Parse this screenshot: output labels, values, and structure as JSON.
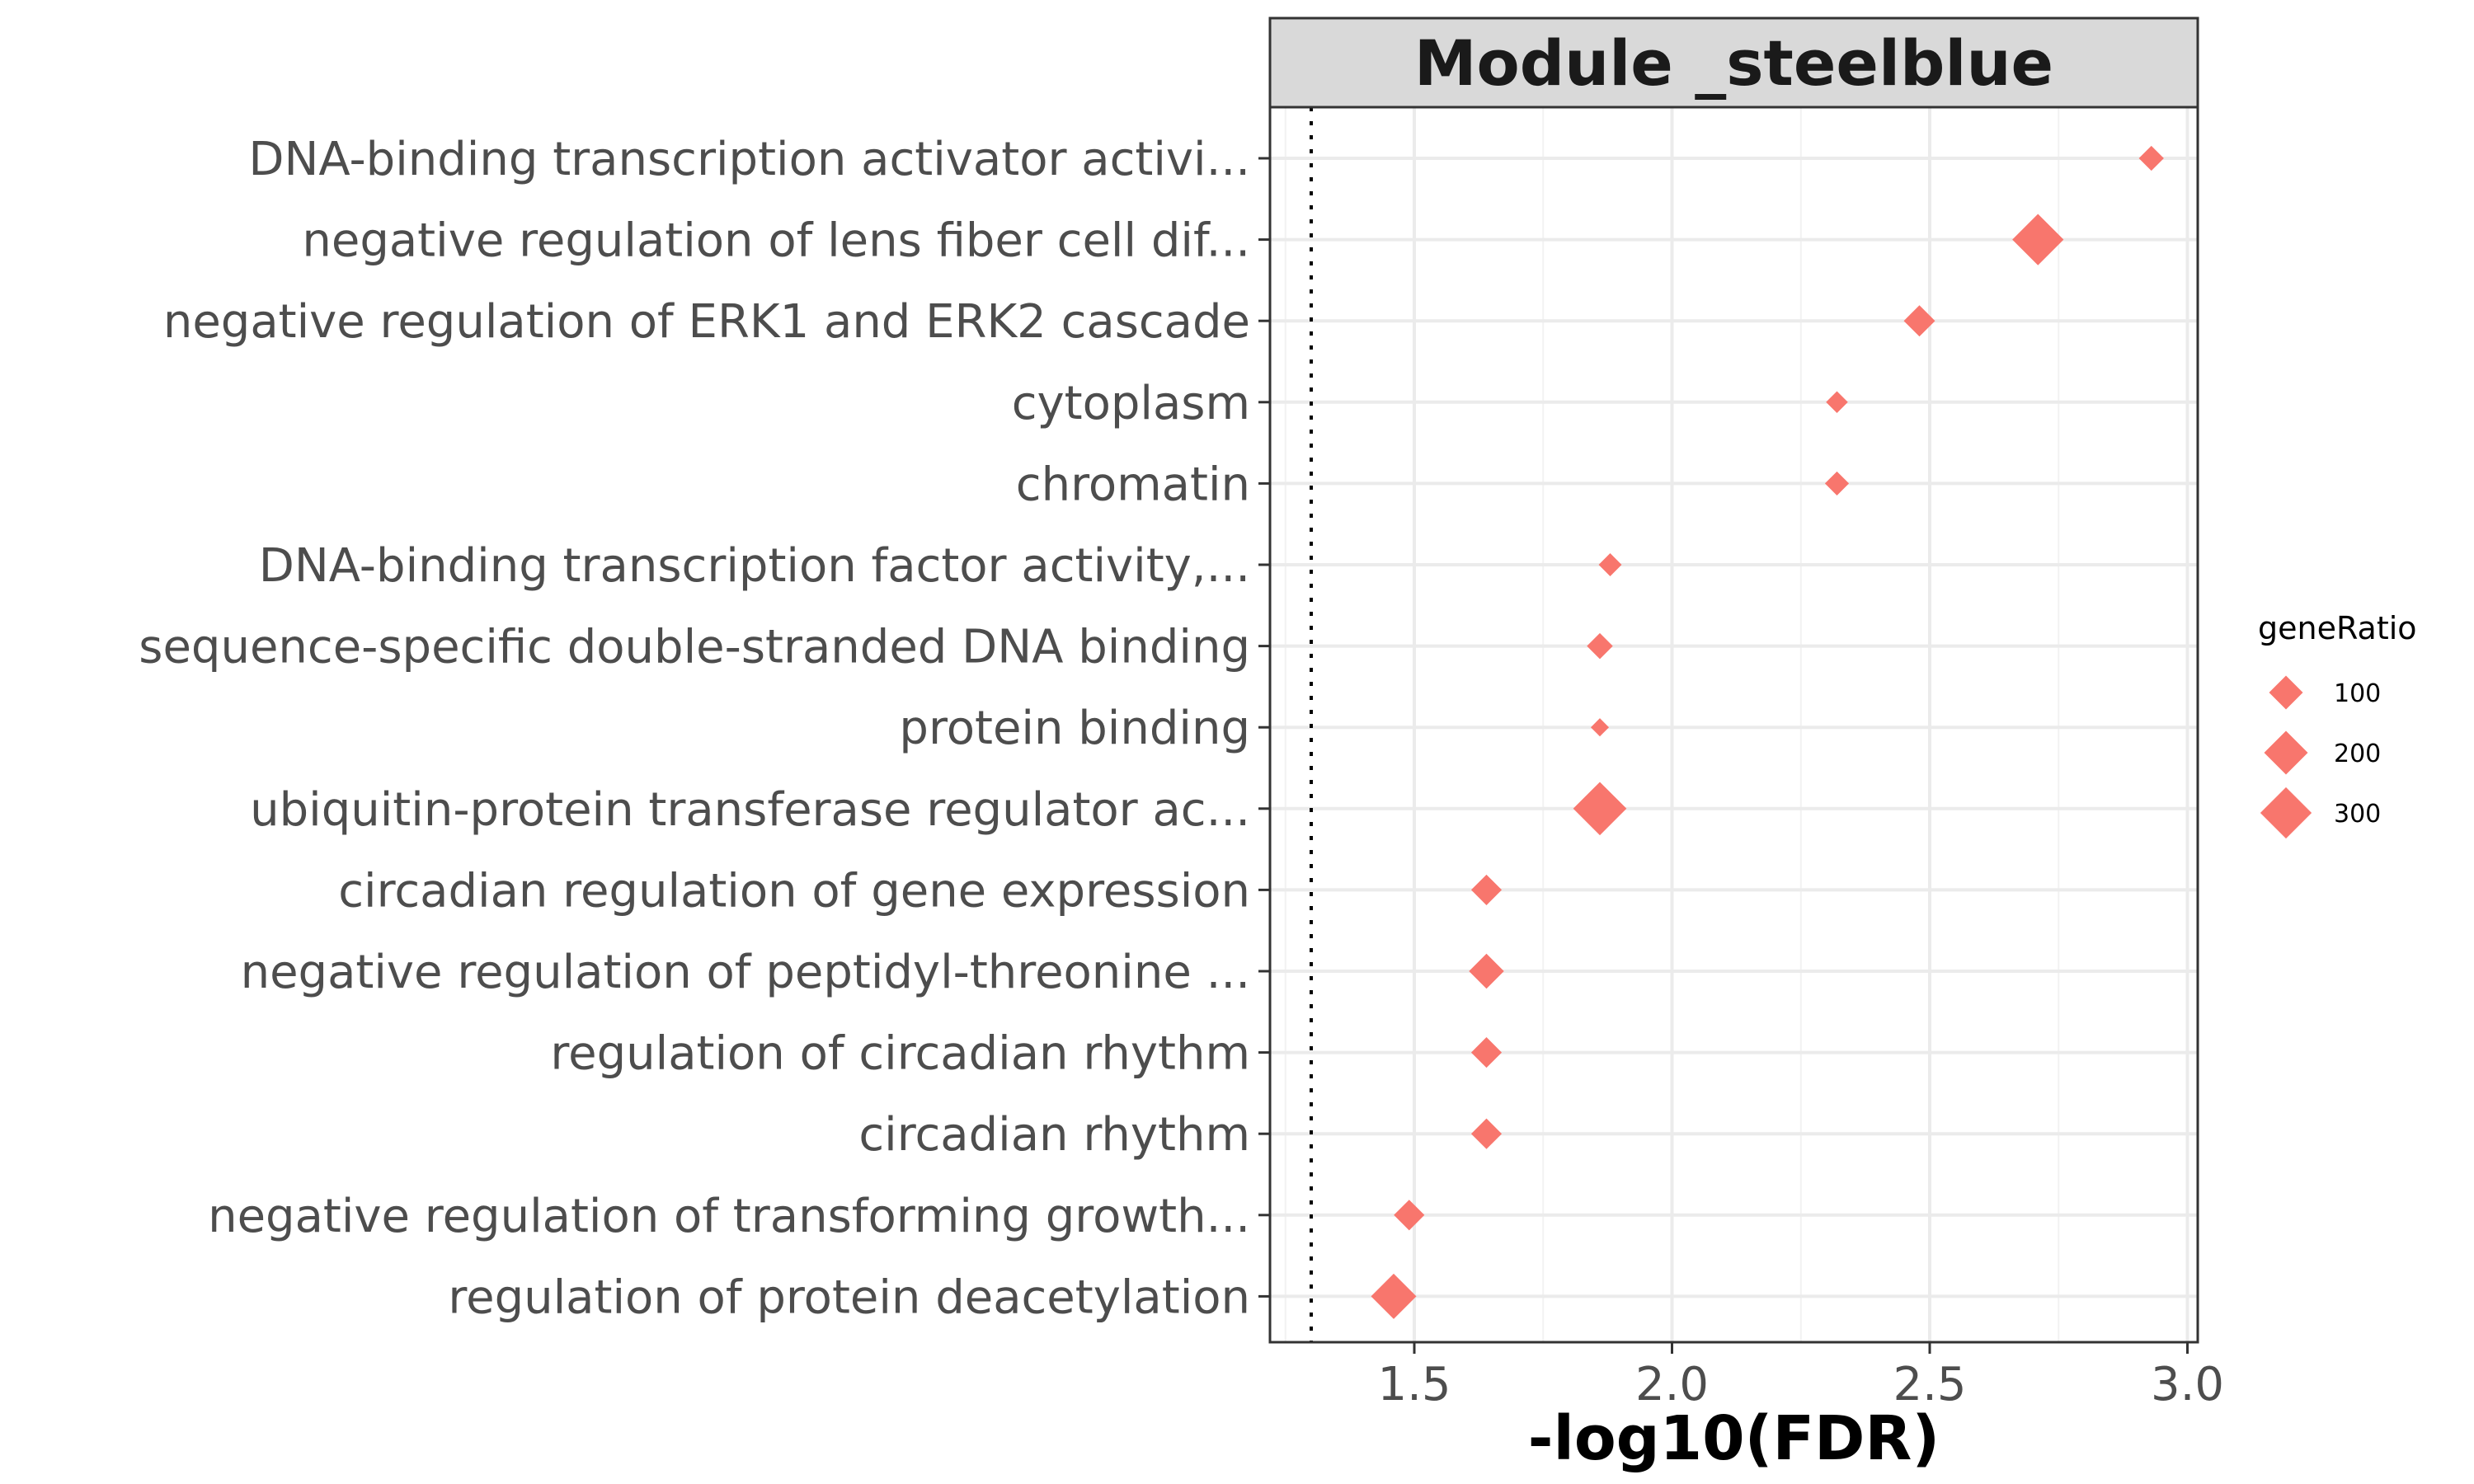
{
  "chart_data": {
    "type": "scatter",
    "strip_title": "Module _steelblue",
    "xlabel": "-log10(FDR)",
    "ylabel": "",
    "xlim": [
      1.22,
      3.02
    ],
    "xticks": [
      1.5,
      2.0,
      2.5,
      3.0
    ],
    "xtick_labels": [
      "1.5",
      "2.0",
      "2.5",
      "3.0"
    ],
    "threshold_x": 1.3,
    "point_shape": "diamond",
    "point_color": "#F8766D",
    "grid": true,
    "legend": {
      "title": "geneRatio",
      "position": "right",
      "entries": [
        {
          "label": "100",
          "size": 100
        },
        {
          "label": "200",
          "size": 200
        },
        {
          "label": "300",
          "size": 300
        }
      ]
    },
    "categories": [
      "DNA-binding transcription activator activi...",
      "negative regulation of lens fiber cell dif...",
      "negative regulation of ERK1 and ERK2 cascade",
      "cytoplasm",
      "chromatin",
      "DNA-binding transcription factor activity,...",
      "sequence-specific double-stranded DNA binding",
      "protein binding",
      "ubiquitin-protein transferase regulator ac...",
      "circadian regulation of gene expression",
      "negative regulation of peptidyl-threonine ...",
      "regulation of circadian rhythm",
      "circadian rhythm",
      "negative regulation of transforming growth...",
      "regulation of protein deacetylation"
    ],
    "points": [
      {
        "x": 2.93,
        "geneRatio": 40
      },
      {
        "x": 2.71,
        "geneRatio": 300
      },
      {
        "x": 2.48,
        "geneRatio": 80
      },
      {
        "x": 2.32,
        "geneRatio": 25
      },
      {
        "x": 2.32,
        "geneRatio": 35
      },
      {
        "x": 1.88,
        "geneRatio": 30
      },
      {
        "x": 1.86,
        "geneRatio": 45
      },
      {
        "x": 1.86,
        "geneRatio": 12
      },
      {
        "x": 1.86,
        "geneRatio": 330
      },
      {
        "x": 1.64,
        "geneRatio": 75
      },
      {
        "x": 1.64,
        "geneRatio": 110
      },
      {
        "x": 1.64,
        "geneRatio": 75
      },
      {
        "x": 1.64,
        "geneRatio": 75
      },
      {
        "x": 1.49,
        "geneRatio": 75
      },
      {
        "x": 1.46,
        "geneRatio": 220
      }
    ]
  }
}
